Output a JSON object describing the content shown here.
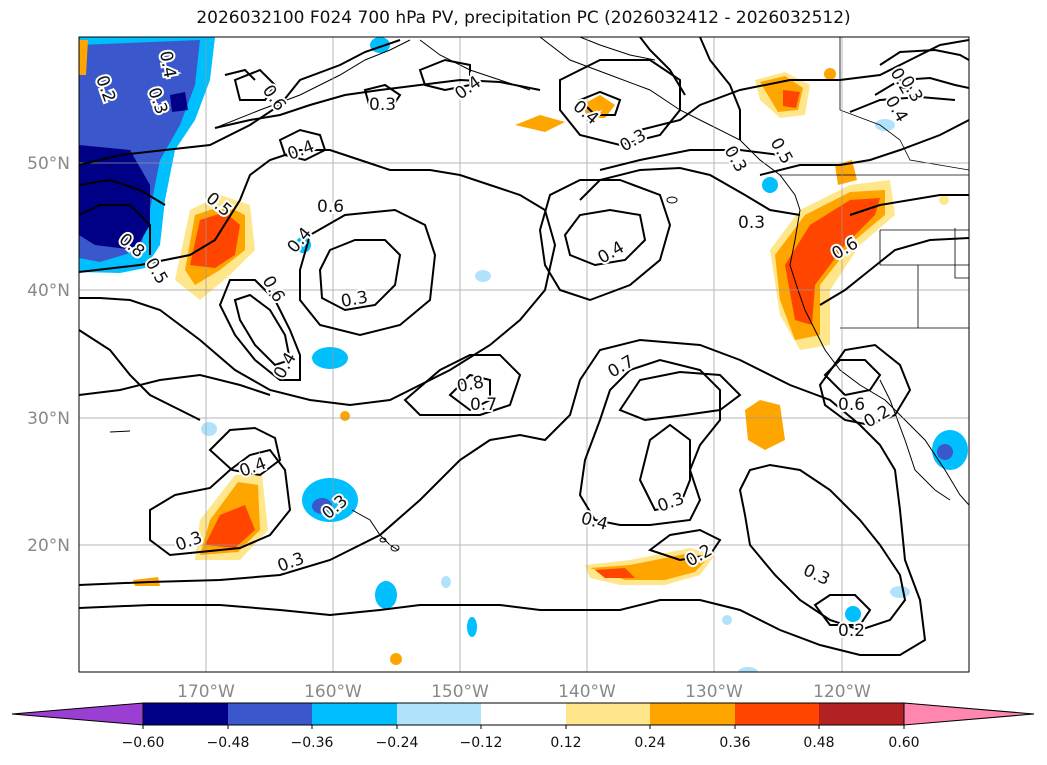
{
  "title": "2026032100 F024 700 hPa PV, precipitation PC (2026032412 - 2026032512)",
  "map": {
    "lat_labels": [
      "50°N",
      "40°N",
      "30°N",
      "20°N"
    ],
    "lon_labels": [
      "170°W",
      "160°W",
      "150°W",
      "140°W",
      "130°W",
      "120°W"
    ]
  },
  "contour_labels": [
    "0.4",
    "0.2",
    "0.3",
    "0.6",
    "0.3",
    "0.4",
    "0.4",
    "0.3",
    "0.4",
    "0.3",
    "0.5",
    "0.4",
    "0.2",
    "0.3",
    "0.6",
    "0.3",
    "0.4",
    "0.8",
    "0.5",
    "0.5",
    "0.6",
    "0.4",
    "0.6",
    "0.3",
    "0.4",
    "0.8",
    "0.7",
    "0.7",
    "0.6",
    "0.2",
    "0.4",
    "0.3",
    "0.3",
    "0.3",
    "0.4",
    "0.3",
    "0.2",
    "0.3",
    "0.2",
    "0.2",
    "0.3",
    "0.4",
    "0.3",
    "0.4"
  ],
  "colorbar": {
    "ticks": [
      "−0.60",
      "−0.48",
      "−0.36",
      "−0.24",
      "−0.12",
      "0.12",
      "0.24",
      "0.36",
      "0.48",
      "0.60"
    ],
    "colors": {
      "lt_m060": "#9a3fd1",
      "m060_m048": "#000087",
      "m048_m036": "#3a58cc",
      "m036_m024": "#00bfff",
      "m024_m012": "#b0e3fb",
      "m012_012": "#ffffff",
      "p012_024": "#ffe68a",
      "p024_036": "#ffa500",
      "p036_048": "#ff4500",
      "p048_060": "#b22222",
      "gt_060": "#ff86ae"
    }
  }
}
